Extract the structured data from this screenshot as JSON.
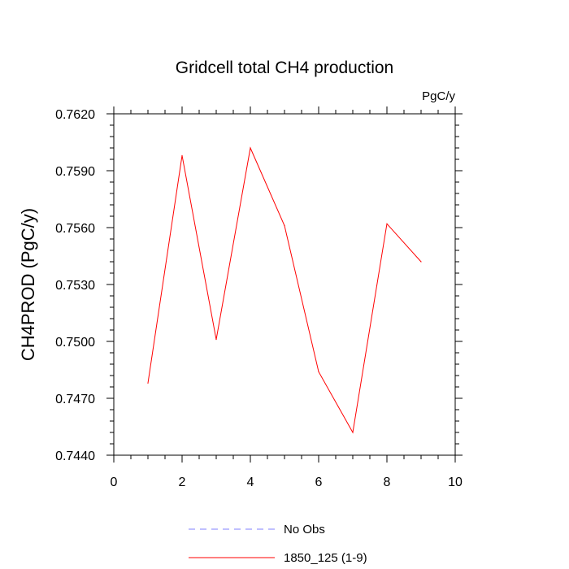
{
  "chart_data": {
    "type": "line",
    "title": "Gridcell total CH4 production",
    "units": "PgC/y",
    "ylabel": "CH4PROD  (PgC/y)",
    "xlabel": "",
    "xlim": [
      0,
      10
    ],
    "ylim": [
      0.744,
      0.762
    ],
    "x_ticks": [
      0,
      2,
      4,
      6,
      8,
      10
    ],
    "x_tick_labels": [
      "0",
      "2",
      "4",
      "6",
      "8",
      "10"
    ],
    "y_ticks": [
      0.744,
      0.747,
      0.75,
      0.753,
      0.756,
      0.759,
      0.762
    ],
    "y_tick_labels": [
      "0.7440",
      "0.7470",
      "0.7500",
      "0.7530",
      "0.7560",
      "0.7590",
      "0.7620"
    ],
    "grid": false,
    "legend_position": "bottom",
    "series": [
      {
        "name": "1850_125 (1-9)",
        "color": "#ff0000",
        "style": "solid",
        "x": [
          1,
          2,
          3,
          4,
          5,
          6,
          7,
          8,
          9
        ],
        "values": [
          0.7478,
          0.7598,
          0.7501,
          0.7602,
          0.7561,
          0.7484,
          0.7452,
          0.7562,
          0.7542
        ]
      }
    ],
    "legend": [
      {
        "label": "No Obs",
        "color": "#8080ff",
        "style": "dashed"
      },
      {
        "label": "1850_125 (1-9)",
        "color": "#ff0000",
        "style": "solid"
      }
    ]
  }
}
